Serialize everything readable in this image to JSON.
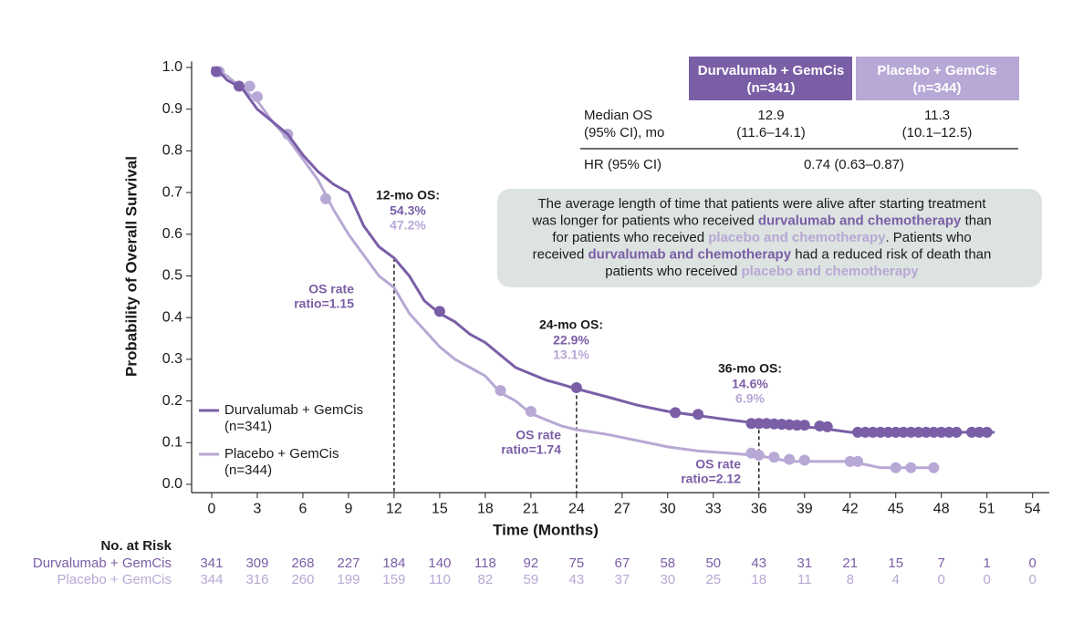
{
  "chart_data": {
    "type": "km",
    "x_label": "Time (Months)",
    "y_label": "Probability of Overall Survival",
    "xlim": [
      -1.32,
      55.1
    ],
    "ylim": [
      -0.02,
      1.01
    ],
    "xticks": [
      0,
      3,
      6,
      9,
      12,
      15,
      18,
      21,
      24,
      27,
      30,
      33,
      36,
      39,
      42,
      45,
      48,
      51,
      54
    ],
    "yticks": [
      {
        "value": 0,
        "label": "0.0"
      },
      0.1,
      0.2,
      0.3,
      0.4,
      0.5,
      0.6,
      0.7,
      0.8,
      0.9,
      {
        "value": 1,
        "label": "1.0"
      }
    ],
    "series": [
      {
        "name": "Durvalumab + GemCis",
        "n_label": "(n=341)",
        "color": "#7a5ea6",
        "x": [
          0,
          0.5,
          1,
          2,
          3,
          4,
          5,
          6,
          7,
          8,
          9,
          9.5,
          10,
          11,
          12,
          13,
          14,
          15,
          16,
          17,
          18,
          19,
          20,
          21,
          22,
          23,
          24,
          26,
          28,
          30,
          32,
          34,
          36,
          38,
          40,
          42,
          51.5
        ],
        "values": [
          1.0,
          0.99,
          0.97,
          0.95,
          0.9,
          0.87,
          0.84,
          0.79,
          0.75,
          0.72,
          0.7,
          0.66,
          0.62,
          0.57,
          0.543,
          0.5,
          0.44,
          0.41,
          0.39,
          0.36,
          0.34,
          0.31,
          0.28,
          0.265,
          0.25,
          0.24,
          0.229,
          0.21,
          0.19,
          0.175,
          0.165,
          0.155,
          0.146,
          0.14,
          0.135,
          0.125,
          0.125
        ],
        "censor_x": [
          0.3,
          1.8,
          15,
          24,
          30.5,
          32,
          35.5,
          36,
          36.5,
          37,
          37.5,
          38,
          38.5,
          39,
          40,
          40.5,
          42.5,
          43,
          43.5,
          44,
          44.5,
          45,
          45.5,
          46,
          46.5,
          47,
          47.5,
          48,
          48.5,
          49,
          50,
          50.5,
          51
        ],
        "censor_values": [
          0.99,
          0.955,
          0.415,
          0.232,
          0.172,
          0.168,
          0.146,
          0.146,
          0.146,
          0.145,
          0.144,
          0.143,
          0.142,
          0.142,
          0.14,
          0.138,
          0.125,
          0.125,
          0.125,
          0.125,
          0.125,
          0.125,
          0.125,
          0.125,
          0.125,
          0.125,
          0.125,
          0.125,
          0.125,
          0.125,
          0.125,
          0.125,
          0.125
        ],
        "at_risk_label": "Durvalumab + GemCis",
        "at_risk": [
          341,
          309,
          268,
          227,
          184,
          140,
          118,
          92,
          75,
          67,
          58,
          50,
          43,
          31,
          21,
          15,
          7,
          1,
          0
        ]
      },
      {
        "name": "Placebo + GemCis",
        "n_label": "(n=344)",
        "color": "#b7a8d5",
        "x": [
          0,
          1,
          2,
          3,
          4,
          5,
          6,
          7,
          8,
          9,
          10,
          11,
          12,
          13,
          14,
          15,
          16,
          17,
          18,
          19,
          20,
          21,
          22,
          23,
          24,
          26,
          28,
          30,
          32,
          34,
          36,
          38,
          40,
          42,
          44,
          47.5
        ],
        "values": [
          1.0,
          0.98,
          0.95,
          0.92,
          0.87,
          0.83,
          0.78,
          0.73,
          0.66,
          0.6,
          0.55,
          0.5,
          0.472,
          0.41,
          0.37,
          0.33,
          0.3,
          0.28,
          0.26,
          0.22,
          0.2,
          0.17,
          0.155,
          0.14,
          0.131,
          0.12,
          0.105,
          0.09,
          0.08,
          0.075,
          0.069,
          0.055,
          0.055,
          0.055,
          0.04,
          0.04
        ],
        "censor_x": [
          0.5,
          2.5,
          3,
          5,
          7.5,
          19,
          21,
          35.5,
          36,
          37,
          38,
          39,
          42,
          42.5,
          45,
          46,
          47.5
        ],
        "censor_values": [
          0.99,
          0.955,
          0.93,
          0.84,
          0.685,
          0.225,
          0.175,
          0.075,
          0.07,
          0.065,
          0.06,
          0.058,
          0.055,
          0.055,
          0.04,
          0.04,
          0.04
        ],
        "at_risk_label": "Placebo + GemCis",
        "at_risk": [
          344,
          316,
          260,
          199,
          159,
          110,
          82,
          59,
          43,
          37,
          30,
          25,
          18,
          11,
          8,
          4,
          0,
          0,
          0
        ]
      }
    ],
    "at_risk_title": "No. at Risk",
    "landmarks": [
      {
        "month": 12,
        "title": "12-mo OS:",
        "durvalumab": "54.3%",
        "placebo": "47.2%",
        "ratio": [
          "OS rate",
          "ratio=1.15"
        ]
      },
      {
        "month": 24,
        "title": "24-mo OS:",
        "durvalumab": "22.9%",
        "placebo": "13.1%",
        "ratio": [
          "OS rate",
          "ratio=1.74"
        ]
      },
      {
        "month": 36,
        "title": "36-mo OS:",
        "durvalumab": "14.6%",
        "placebo": "6.9%",
        "ratio": [
          "OS rate",
          "ratio=2.12"
        ]
      }
    ],
    "summary_table": {
      "headers": [
        [
          "Durvalumab + GemCis",
          "(n=341)"
        ],
        [
          "Placebo + GemCis",
          "(n=344)"
        ]
      ],
      "rows": [
        {
          "label": [
            "Median OS",
            "(95% CI), mo"
          ],
          "cells": [
            [
              "12.9",
              "(11.6–14.1)"
            ],
            [
              "11.3",
              "(10.1–12.5)"
            ]
          ]
        },
        {
          "label": [
            "HR (95% CI)"
          ],
          "cells": [
            [
              "0.74 (0.63–0.87)"
            ]
          ]
        }
      ]
    },
    "callout": [
      [
        {
          "text": "The average length of time that patients were alive after starting treatment",
          "style": "plain"
        }
      ],
      [
        {
          "text": "was longer for patients who received ",
          "style": "plain"
        },
        {
          "text": "durvalumab and chemotherapy",
          "style": "durvalumab"
        },
        {
          "text": "  than",
          "style": "plain"
        }
      ],
      [
        {
          "text": "for patients who received ",
          "style": "plain"
        },
        {
          "text": "placebo and chemotherapy",
          "style": "placebo"
        },
        {
          "text": ". Patients who",
          "style": "plain"
        }
      ],
      [
        {
          "text": "received ",
          "style": "plain"
        },
        {
          "text": "durvalumab and chemotherapy",
          "style": "durvalumab"
        },
        {
          "text": "  had a reduced risk of death than",
          "style": "plain"
        }
      ],
      [
        {
          "text": "patients who received ",
          "style": "plain"
        },
        {
          "text": "placebo and chemotherapy",
          "style": "placebo"
        }
      ]
    ]
  }
}
